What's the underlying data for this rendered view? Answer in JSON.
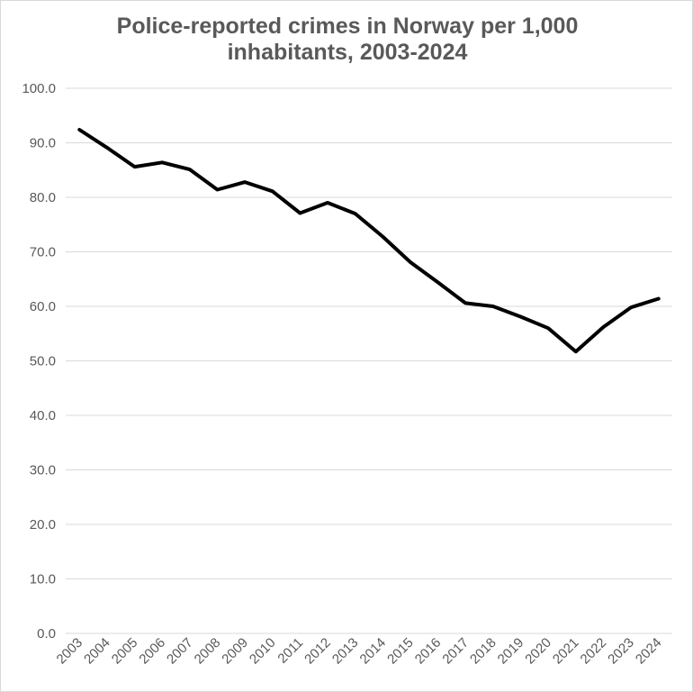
{
  "chart_data": {
    "type": "line",
    "title": "Police-reported crimes in Norway per 1,000 inhabitants, 2003-2024",
    "title_lines": [
      "Police-reported crimes in Norway per 1,000",
      "inhabitants, 2003-2024"
    ],
    "xlabel": "",
    "ylabel": "",
    "categories": [
      "2003",
      "2004",
      "2005",
      "2006",
      "2007",
      "2008",
      "2009",
      "2010",
      "2011",
      "2012",
      "2013",
      "2014",
      "2015",
      "2016",
      "2017",
      "2018",
      "2019",
      "2020",
      "2021",
      "2022",
      "2023",
      "2024"
    ],
    "series": [
      {
        "values": [
          92.4,
          89.1,
          85.6,
          86.4,
          85.1,
          81.4,
          82.8,
          81.1,
          77.1,
          79.0,
          77.0,
          72.8,
          68.1,
          64.4,
          60.6,
          60.0,
          58.1,
          56.0,
          51.7,
          56.2,
          59.8,
          61.4
        ],
        "color": "#000000"
      }
    ],
    "ylim": [
      0,
      100
    ],
    "yticks": [
      "0.0",
      "10.0",
      "20.0",
      "30.0",
      "40.0",
      "50.0",
      "60.0",
      "70.0",
      "80.0",
      "90.0",
      "100.0"
    ],
    "grid": true,
    "legend": "none",
    "gridline_color": "#d9d9d9",
    "text_color": "#595959"
  }
}
